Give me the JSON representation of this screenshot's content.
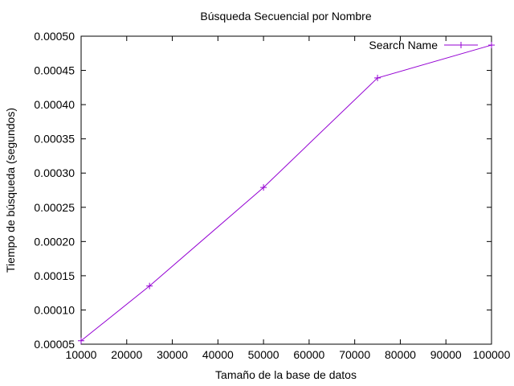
{
  "chart_data": {
    "type": "line",
    "title": "Búsqueda Secuencial por Nombre",
    "xlabel": "Tamaño de la base de datos",
    "ylabel": "Tiempo de búsqueda (segundos)",
    "xlim": [
      10000,
      100000
    ],
    "ylim": [
      5e-05,
      0.0005
    ],
    "x_ticks": [
      10000,
      20000,
      30000,
      40000,
      50000,
      60000,
      70000,
      80000,
      90000,
      100000
    ],
    "x_tick_labels": [
      "10000",
      "20000",
      "30000",
      "40000",
      "50000",
      "60000",
      "70000",
      "80000",
      "90000",
      "100000"
    ],
    "y_ticks": [
      5e-05,
      0.0001,
      0.00015,
      0.0002,
      0.00025,
      0.0003,
      0.00035,
      0.0004,
      0.00045,
      0.0005
    ],
    "y_tick_labels": [
      "0.00005",
      "0.00010",
      "0.00015",
      "0.00020",
      "0.00025",
      "0.00030",
      "0.00035",
      "0.00040",
      "0.00045",
      "0.00050"
    ],
    "grid": false,
    "legend_position": "top-right",
    "series": [
      {
        "name": "Search Name",
        "color": "#9400d3",
        "marker": "plus",
        "x": [
          10000,
          25000,
          50000,
          75000,
          100000
        ],
        "y": [
          5.5e-05,
          0.000135,
          0.000279,
          0.000439,
          0.000487
        ]
      }
    ]
  }
}
